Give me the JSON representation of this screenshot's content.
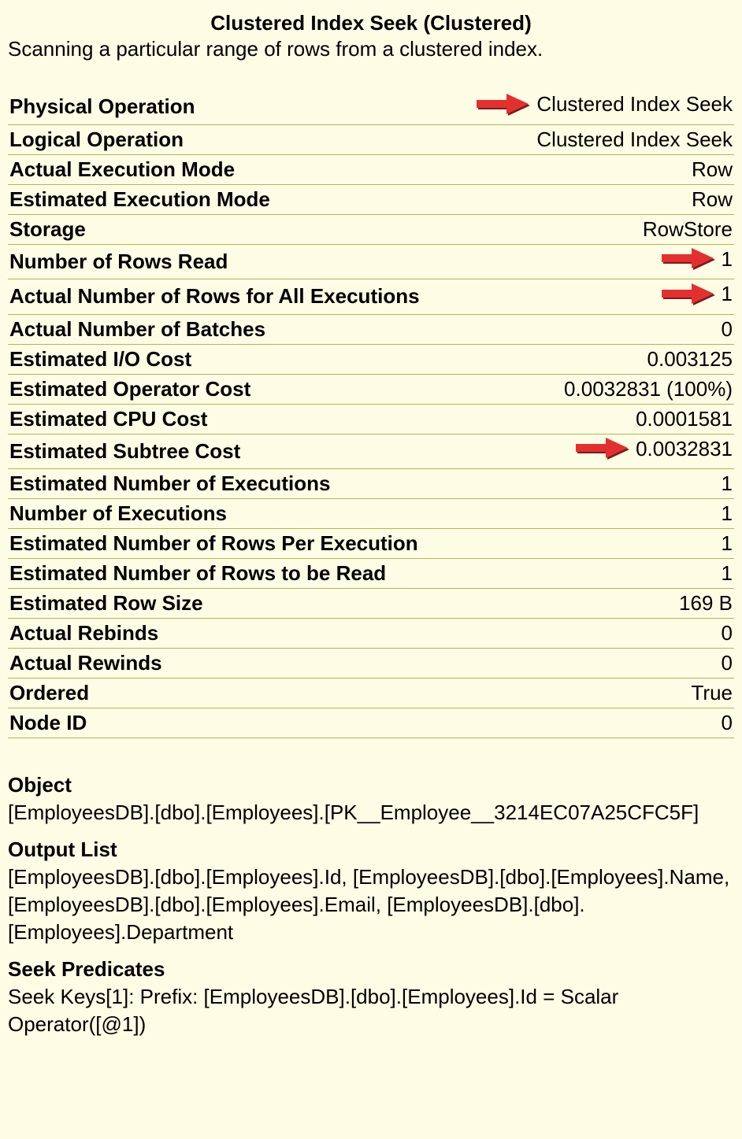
{
  "colors": {
    "background": "#fdfce5",
    "divider": "#b5b552",
    "text": "#000000",
    "arrow_fill": "#e3302f",
    "arrow_shadow": "#7a1b1b"
  },
  "header": {
    "title": "Clustered Index Seek (Clustered)",
    "subtitle": "Scanning a particular range of rows from a clustered index."
  },
  "properties": [
    {
      "label": "Physical Operation",
      "value": "Clustered Index Seek",
      "arrow": true
    },
    {
      "label": "Logical Operation",
      "value": "Clustered Index Seek",
      "arrow": false
    },
    {
      "label": "Actual Execution Mode",
      "value": "Row",
      "arrow": false
    },
    {
      "label": "Estimated Execution Mode",
      "value": "Row",
      "arrow": false
    },
    {
      "label": "Storage",
      "value": "RowStore",
      "arrow": false
    },
    {
      "label": "Number of Rows Read",
      "value": "1",
      "arrow": true
    },
    {
      "label": "Actual Number of Rows for All Executions",
      "value": "1",
      "arrow": true
    },
    {
      "label": "Actual Number of Batches",
      "value": "0",
      "arrow": false
    },
    {
      "label": "Estimated I/O Cost",
      "value": "0.003125",
      "arrow": false
    },
    {
      "label": "Estimated Operator Cost",
      "value": "0.0032831 (100%)",
      "arrow": false
    },
    {
      "label": "Estimated CPU Cost",
      "value": "0.0001581",
      "arrow": false
    },
    {
      "label": "Estimated Subtree Cost",
      "value": "0.0032831",
      "arrow": true
    },
    {
      "label": "Estimated Number of Executions",
      "value": "1",
      "arrow": false
    },
    {
      "label": "Number of Executions",
      "value": "1",
      "arrow": false
    },
    {
      "label": "Estimated Number of Rows Per Execution",
      "value": "1",
      "arrow": false
    },
    {
      "label": "Estimated Number of Rows to be Read",
      "value": "1",
      "arrow": false
    },
    {
      "label": "Estimated Row Size",
      "value": "169 B",
      "arrow": false
    },
    {
      "label": "Actual Rebinds",
      "value": "0",
      "arrow": false
    },
    {
      "label": "Actual Rewinds",
      "value": "0",
      "arrow": false
    },
    {
      "label": "Ordered",
      "value": "True",
      "arrow": false
    },
    {
      "label": "Node ID",
      "value": "0",
      "arrow": false
    }
  ],
  "sections": [
    {
      "heading": "Object",
      "body": "[EmployeesDB].[dbo].[Employees].[PK__Employee__3214EC07A25CFC5F]"
    },
    {
      "heading": "Output List",
      "body": "[EmployeesDB].[dbo].[Employees].Id, [EmployeesDB].[dbo].[Employees].Name, [EmployeesDB].[dbo].[Employees].Email, [EmployeesDB].[dbo].[Employees].Department"
    },
    {
      "heading": "Seek Predicates",
      "body": "Seek Keys[1]: Prefix: [EmployeesDB].[dbo].[Employees].Id = Scalar Operator([@1])"
    }
  ]
}
